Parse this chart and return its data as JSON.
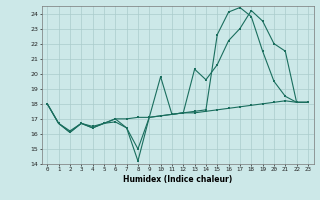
{
  "xlabel": "Humidex (Indice chaleur)",
  "background_color": "#cce8e8",
  "grid_color": "#aacccc",
  "line_color": "#1a6e5e",
  "xlim": [
    -0.5,
    23.5
  ],
  "ylim": [
    14,
    24.5
  ],
  "yticks": [
    14,
    15,
    16,
    17,
    18,
    19,
    20,
    21,
    22,
    23,
    24
  ],
  "xticks": [
    0,
    1,
    2,
    3,
    4,
    5,
    6,
    7,
    8,
    9,
    10,
    11,
    12,
    13,
    14,
    15,
    16,
    17,
    18,
    19,
    20,
    21,
    22,
    23
  ],
  "line1_x": [
    0,
    1,
    2,
    3,
    4,
    5,
    6,
    7,
    8,
    9,
    10,
    11,
    12,
    13,
    14,
    15,
    16,
    17,
    18,
    19,
    20,
    21,
    22,
    23
  ],
  "line1_y": [
    18.0,
    16.7,
    16.1,
    16.7,
    16.4,
    16.7,
    17.0,
    17.0,
    17.1,
    17.1,
    17.2,
    17.3,
    17.4,
    17.4,
    17.5,
    17.6,
    17.7,
    17.8,
    17.9,
    18.0,
    18.1,
    18.2,
    18.1,
    18.1
  ],
  "line2_x": [
    0,
    1,
    2,
    3,
    4,
    5,
    6,
    7,
    8,
    9,
    10,
    11,
    12,
    13,
    14,
    15,
    16,
    17,
    18,
    19,
    20,
    21,
    22,
    23
  ],
  "line2_y": [
    18.0,
    16.7,
    16.2,
    16.7,
    16.4,
    16.7,
    16.8,
    16.4,
    15.0,
    17.1,
    19.8,
    17.3,
    17.4,
    20.3,
    19.6,
    20.6,
    22.2,
    23.0,
    24.2,
    23.5,
    22.0,
    21.5,
    18.1,
    18.1
  ],
  "line3_x": [
    0,
    1,
    2,
    3,
    4,
    5,
    6,
    7,
    8,
    9,
    10,
    11,
    12,
    13,
    14,
    15,
    16,
    17,
    18,
    19,
    20,
    21,
    22,
    23
  ],
  "line3_y": [
    18.0,
    16.7,
    16.1,
    16.7,
    16.5,
    16.7,
    17.0,
    16.4,
    14.2,
    17.1,
    17.2,
    17.3,
    17.4,
    17.5,
    17.6,
    22.6,
    24.1,
    24.4,
    23.8,
    21.5,
    19.5,
    18.5,
    18.1,
    18.1
  ]
}
